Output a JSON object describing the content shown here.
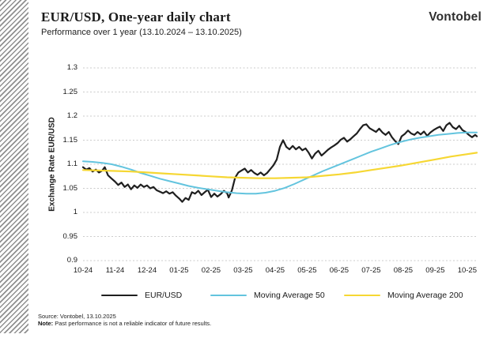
{
  "header": {
    "title": "EUR/USD, One-year daily chart",
    "subtitle": "Performance over 1 year (13.10.2024 – 13.10.2025)",
    "logo": "Vontobel"
  },
  "chart_data": {
    "type": "line",
    "title": "EUR/USD, One-year daily chart",
    "xlabel": "",
    "ylabel": "Exchange Rate EUR/USD",
    "ylim": [
      0.9,
      1.3
    ],
    "y_ticks": [
      1.3,
      1.25,
      1.2,
      1.15,
      1.1,
      1.05,
      1,
      0.95,
      0.9
    ],
    "x_tick_labels": [
      "10-24",
      "11-24",
      "12-24",
      "01-25",
      "02-25",
      "03-25",
      "04-25",
      "05-25",
      "06-25",
      "07-25",
      "08-25",
      "09-25",
      "10-25"
    ],
    "x_months_max": 12.3,
    "grid": "horizontal-dashed",
    "grid_color": "#cbcbcb",
    "legend_position": "bottom",
    "series": [
      {
        "name": "EUR/USD",
        "color": "#1f1f1f",
        "width": 2.2,
        "points": [
          [
            0,
            1.094
          ],
          [
            0.1,
            1.089
          ],
          [
            0.2,
            1.092
          ],
          [
            0.3,
            1.085
          ],
          [
            0.4,
            1.089
          ],
          [
            0.5,
            1.083
          ],
          [
            0.6,
            1.087
          ],
          [
            0.68,
            1.094
          ],
          [
            0.78,
            1.077
          ],
          [
            0.88,
            1.071
          ],
          [
            1,
            1.064
          ],
          [
            1.1,
            1.057
          ],
          [
            1.2,
            1.062
          ],
          [
            1.3,
            1.053
          ],
          [
            1.4,
            1.058
          ],
          [
            1.5,
            1.048
          ],
          [
            1.6,
            1.056
          ],
          [
            1.7,
            1.051
          ],
          [
            1.8,
            1.058
          ],
          [
            1.9,
            1.053
          ],
          [
            2,
            1.056
          ],
          [
            2.1,
            1.05
          ],
          [
            2.2,
            1.053
          ],
          [
            2.3,
            1.046
          ],
          [
            2.4,
            1.043
          ],
          [
            2.5,
            1.04
          ],
          [
            2.6,
            1.044
          ],
          [
            2.7,
            1.039
          ],
          [
            2.8,
            1.042
          ],
          [
            2.9,
            1.035
          ],
          [
            3,
            1.029
          ],
          [
            3.1,
            1.022
          ],
          [
            3.2,
            1.03
          ],
          [
            3.3,
            1.026
          ],
          [
            3.4,
            1.042
          ],
          [
            3.5,
            1.039
          ],
          [
            3.6,
            1.045
          ],
          [
            3.7,
            1.036
          ],
          [
            3.8,
            1.042
          ],
          [
            3.9,
            1.047
          ],
          [
            4,
            1.032
          ],
          [
            4.1,
            1.039
          ],
          [
            4.2,
            1.033
          ],
          [
            4.3,
            1.038
          ],
          [
            4.4,
            1.045
          ],
          [
            4.5,
            1.04
          ],
          [
            4.55,
            1.031
          ],
          [
            4.65,
            1.046
          ],
          [
            4.75,
            1.072
          ],
          [
            4.85,
            1.083
          ],
          [
            4.95,
            1.087
          ],
          [
            5.05,
            1.091
          ],
          [
            5.15,
            1.083
          ],
          [
            5.25,
            1.088
          ],
          [
            5.35,
            1.082
          ],
          [
            5.45,
            1.078
          ],
          [
            5.55,
            1.083
          ],
          [
            5.65,
            1.077
          ],
          [
            5.75,
            1.082
          ],
          [
            5.85,
            1.09
          ],
          [
            5.95,
            1.098
          ],
          [
            6.05,
            1.11
          ],
          [
            6.15,
            1.136
          ],
          [
            6.25,
            1.15
          ],
          [
            6.35,
            1.136
          ],
          [
            6.45,
            1.131
          ],
          [
            6.55,
            1.138
          ],
          [
            6.65,
            1.131
          ],
          [
            6.75,
            1.136
          ],
          [
            6.85,
            1.129
          ],
          [
            6.95,
            1.133
          ],
          [
            7.05,
            1.124
          ],
          [
            7.15,
            1.112
          ],
          [
            7.25,
            1.122
          ],
          [
            7.35,
            1.128
          ],
          [
            7.45,
            1.118
          ],
          [
            7.55,
            1.124
          ],
          [
            7.65,
            1.13
          ],
          [
            7.75,
            1.135
          ],
          [
            7.85,
            1.139
          ],
          [
            7.95,
            1.144
          ],
          [
            8.05,
            1.151
          ],
          [
            8.15,
            1.155
          ],
          [
            8.25,
            1.147
          ],
          [
            8.35,
            1.152
          ],
          [
            8.45,
            1.158
          ],
          [
            8.55,
            1.164
          ],
          [
            8.65,
            1.173
          ],
          [
            8.75,
            1.181
          ],
          [
            8.85,
            1.183
          ],
          [
            8.95,
            1.175
          ],
          [
            9.05,
            1.171
          ],
          [
            9.15,
            1.167
          ],
          [
            9.25,
            1.174
          ],
          [
            9.35,
            1.166
          ],
          [
            9.45,
            1.161
          ],
          [
            9.55,
            1.167
          ],
          [
            9.65,
            1.156
          ],
          [
            9.75,
            1.148
          ],
          [
            9.85,
            1.142
          ],
          [
            9.95,
            1.158
          ],
          [
            10.05,
            1.163
          ],
          [
            10.15,
            1.17
          ],
          [
            10.25,
            1.164
          ],
          [
            10.35,
            1.161
          ],
          [
            10.45,
            1.167
          ],
          [
            10.55,
            1.162
          ],
          [
            10.65,
            1.168
          ],
          [
            10.75,
            1.159
          ],
          [
            10.85,
            1.166
          ],
          [
            10.95,
            1.171
          ],
          [
            11.05,
            1.175
          ],
          [
            11.15,
            1.178
          ],
          [
            11.25,
            1.169
          ],
          [
            11.35,
            1.181
          ],
          [
            11.45,
            1.186
          ],
          [
            11.55,
            1.177
          ],
          [
            11.65,
            1.173
          ],
          [
            11.75,
            1.18
          ],
          [
            11.85,
            1.171
          ],
          [
            11.95,
            1.167
          ],
          [
            12.05,
            1.161
          ],
          [
            12.15,
            1.156
          ],
          [
            12.25,
            1.161
          ],
          [
            12.3,
            1.158
          ]
        ]
      },
      {
        "name": "Moving Average 50",
        "color": "#63c4de",
        "width": 2,
        "points": [
          [
            0,
            1.106
          ],
          [
            0.3,
            1.105
          ],
          [
            0.6,
            1.103
          ],
          [
            0.9,
            1.1
          ],
          [
            1.2,
            1.095
          ],
          [
            1.5,
            1.089
          ],
          [
            1.8,
            1.082
          ],
          [
            2.1,
            1.076
          ],
          [
            2.4,
            1.07
          ],
          [
            2.7,
            1.065
          ],
          [
            3,
            1.06
          ],
          [
            3.3,
            1.055
          ],
          [
            3.6,
            1.051
          ],
          [
            3.9,
            1.048
          ],
          [
            4.2,
            1.045
          ],
          [
            4.5,
            1.042
          ],
          [
            4.8,
            1.04
          ],
          [
            5.1,
            1.039
          ],
          [
            5.4,
            1.039
          ],
          [
            5.7,
            1.041
          ],
          [
            6,
            1.045
          ],
          [
            6.3,
            1.051
          ],
          [
            6.6,
            1.059
          ],
          [
            6.9,
            1.068
          ],
          [
            7.2,
            1.077
          ],
          [
            7.5,
            1.086
          ],
          [
            7.8,
            1.094
          ],
          [
            8.1,
            1.102
          ],
          [
            8.4,
            1.11
          ],
          [
            8.7,
            1.118
          ],
          [
            9,
            1.126
          ],
          [
            9.3,
            1.133
          ],
          [
            9.6,
            1.14
          ],
          [
            9.9,
            1.146
          ],
          [
            10.2,
            1.151
          ],
          [
            10.5,
            1.155
          ],
          [
            10.8,
            1.158
          ],
          [
            11.1,
            1.161
          ],
          [
            11.4,
            1.163
          ],
          [
            11.7,
            1.165
          ],
          [
            12,
            1.166
          ],
          [
            12.3,
            1.166
          ]
        ]
      },
      {
        "name": "Moving Average 200",
        "color": "#f6d733",
        "width": 2.2,
        "points": [
          [
            0,
            1.088
          ],
          [
            0.5,
            1.087
          ],
          [
            1,
            1.086
          ],
          [
            1.5,
            1.085
          ],
          [
            2,
            1.083
          ],
          [
            2.5,
            1.081
          ],
          [
            3,
            1.079
          ],
          [
            3.5,
            1.077
          ],
          [
            4,
            1.075
          ],
          [
            4.5,
            1.073
          ],
          [
            5,
            1.072
          ],
          [
            5.5,
            1.071
          ],
          [
            6,
            1.071
          ],
          [
            6.5,
            1.072
          ],
          [
            7,
            1.073
          ],
          [
            7.5,
            1.076
          ],
          [
            8,
            1.079
          ],
          [
            8.5,
            1.083
          ],
          [
            9,
            1.088
          ],
          [
            9.5,
            1.093
          ],
          [
            10,
            1.098
          ],
          [
            10.5,
            1.104
          ],
          [
            11,
            1.11
          ],
          [
            11.5,
            1.116
          ],
          [
            12,
            1.121
          ],
          [
            12.3,
            1.124
          ]
        ]
      }
    ]
  },
  "footer": {
    "source": "Source: Vontobel, 13.10.2025",
    "note_label": "Note:",
    "note_text": " Past performance is not a reliable indicator of future results."
  }
}
